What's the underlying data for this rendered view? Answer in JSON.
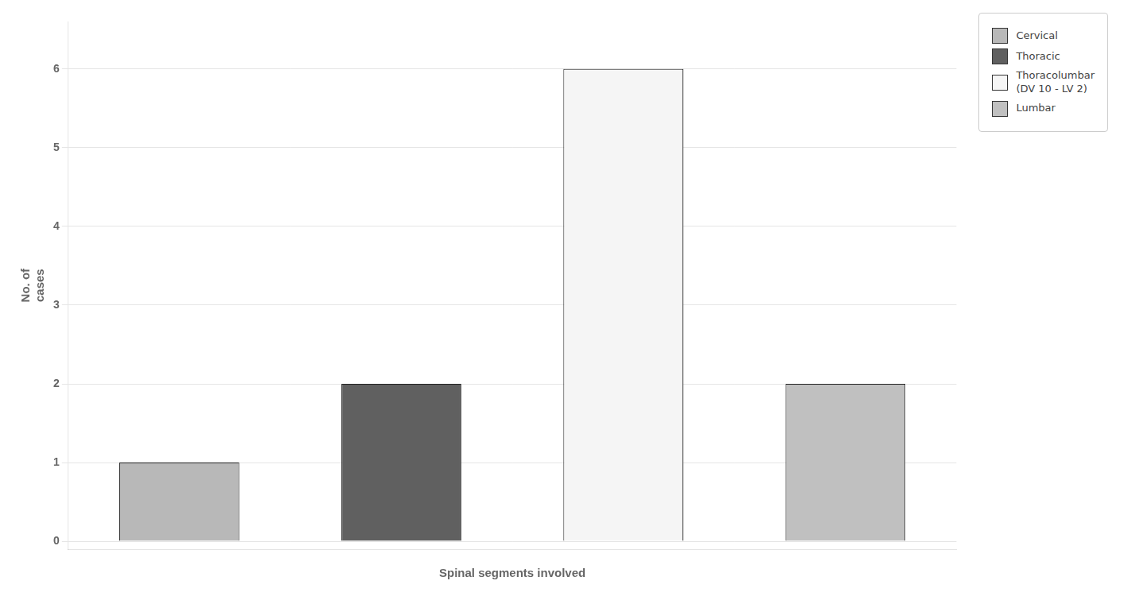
{
  "chart_data": {
    "type": "bar",
    "categories": [
      "Cervical",
      "Thoracic",
      "Thoracolumbar\n(DV 10 - LV 2)",
      "Lumbar"
    ],
    "values": [
      1,
      2,
      6,
      2
    ],
    "colors": [
      "#b8b8b8",
      "#606060",
      "#f5f5f5",
      "#c0c0c0"
    ],
    "xlabel": "Spinal segments involved",
    "ylabel": "No. of\ncases",
    "ylim": [
      -0.1,
      6.6
    ],
    "yticks": [
      0,
      1,
      2,
      3,
      4,
      5,
      6
    ],
    "grid": true,
    "legend": "upper right",
    "tick_labels": "y"
  }
}
